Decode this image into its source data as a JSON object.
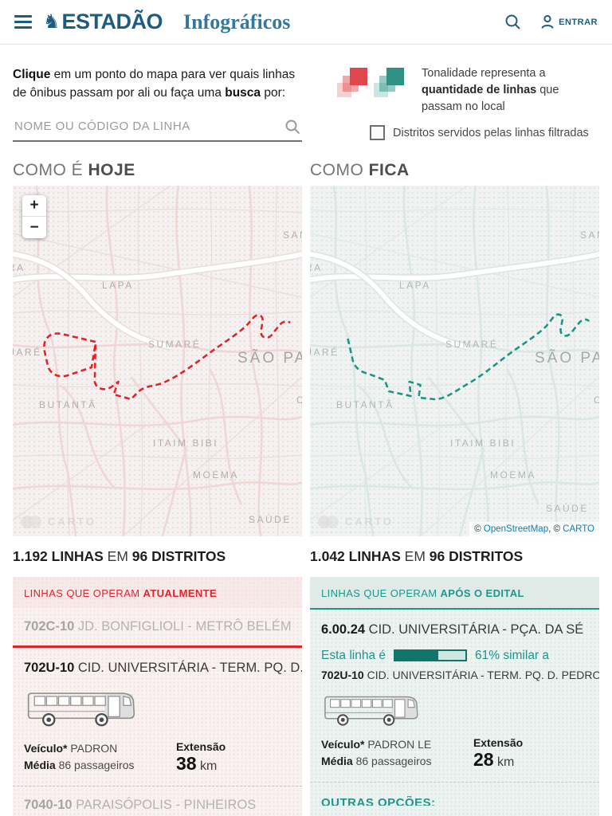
{
  "colors": {
    "accent_red": "#e02528",
    "accent_teal": "#1d9486",
    "header_blue": "#1d5c80",
    "title_blue": "#33789f",
    "link_blue": "#0b7cbe"
  },
  "header": {
    "brand": "ESTADÃO",
    "horse_icon": "♞",
    "section": "Infográficos",
    "login_label": "ENTRAR"
  },
  "intro": {
    "bold1": "Clique",
    "mid1": " em um ponto do mapa para ver quais linhas de ônibus passam por ali ou faça uma ",
    "bold2": "busca",
    "end": " por:",
    "search_placeholder": "NOME OU CÓDIGO DA LINHA"
  },
  "legend": {
    "tonality_pre": "Tonalidade representa a ",
    "tonality_bold": "quantidade de linhas",
    "tonality_post": " que passam no local",
    "checkbox_label": "Distritos servidos pelas linhas filtradas"
  },
  "sections": {
    "left_normal": "COMO É ",
    "left_bold": "HOJE",
    "right_normal": "COMO ",
    "right_bold": "FICA"
  },
  "map": {
    "zoom_in": "+",
    "zoom_out": "−",
    "watermark": "CARTO",
    "attr_pre": "© ",
    "attr_osm": "OpenStreetMap",
    "attr_sep": ", © ",
    "attr_carto": "CARTO"
  },
  "map_labels": [
    "SANTAN",
    "RA",
    "LAPA",
    "SUMARÉ",
    "JARÉ",
    "SÃO PAUL",
    "BUTANTÃ",
    "CA",
    "ITAIM BIBI",
    "MOEMA",
    "SAÚDE"
  ],
  "counts": {
    "left_bold1": "1.192 LINHAS",
    "left_mid": " EM ",
    "left_bold2": "96 DISTRITOS",
    "right_bold1": "1.042 LINHAS",
    "right_mid": " EM ",
    "right_bold2": "96 DISTRITOS"
  },
  "left_panel": {
    "header_normal": "LINHAS QUE OPERAM ",
    "header_bold": "ATUALMENTE",
    "row1_code": "702C-10",
    "row1_name": " JD. BONFIGLIOLI - METRÔ BELÉM",
    "active_code": "702U-10",
    "active_name": " CID. UNIVERSITÁRIA - TERM. PQ. D. P",
    "vehicle_label": "Veículo*",
    "vehicle_value": " PADRON",
    "avg_label": "Média",
    "avg_value": " 86 passageiros",
    "ext_label": "Extensão",
    "ext_value": "38",
    "ext_unit": " km",
    "row2_code": "7040-10",
    "row2_name": " PARAISÓPOLIS - PINHEIROS"
  },
  "right_panel": {
    "header_normal": "LINHAS QUE OPERAM ",
    "header_bold": "APÓS O EDITAL",
    "active_code": "6.00.24",
    "active_name": " CID. UNIVERSITÁRIA - PÇA. DA SÉ",
    "similar_pre": "Esta linha é",
    "similar_pct_label": "61% similar a",
    "similar_pct": 61,
    "similar_code": "702U-10",
    "similar_name": " CID. UNIVERSITÁRIA - TERM. PQ. D. PEDRO II",
    "vehicle_label": "Veículo*",
    "vehicle_value": " PADRON LE",
    "avg_label": "Média",
    "avg_value": " 86 passageiros",
    "ext_label": "Extensão",
    "ext_value": "28",
    "ext_unit": " km",
    "more_options": "OUTRAS OPÇÕES:"
  }
}
